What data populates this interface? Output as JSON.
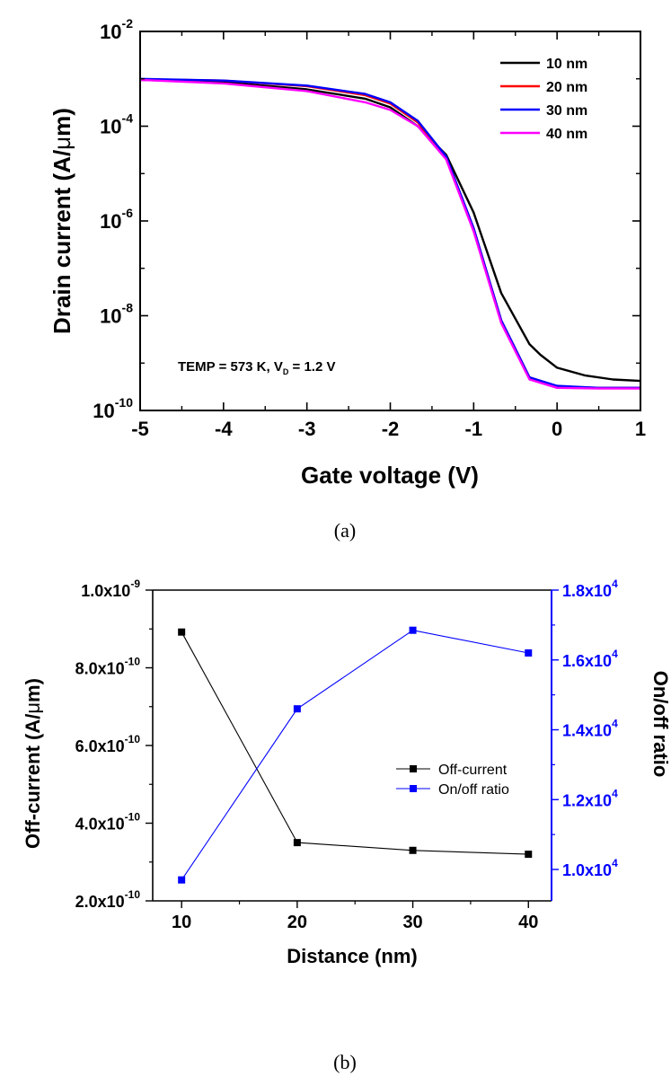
{
  "chart_data": [
    {
      "type": "line",
      "panel_caption": "(a)",
      "xlabel": "Gate voltage (V)",
      "ylabel_main": "Drain current (A/",
      "ylabel_unit_mu": "μ",
      "ylabel_tail": "m)",
      "xlim": [
        -5,
        1
      ],
      "ylim": [
        1e-10,
        0.01
      ],
      "yscale": "log",
      "x_ticks": [
        "-5",
        "-4",
        "-3",
        "-2",
        "-1",
        "0",
        "1"
      ],
      "y_tick_exponents": [
        "-2",
        "-4",
        "-6",
        "-8",
        "-10"
      ],
      "y_tick_base": "10",
      "annotation": {
        "main": "TEMP = 573 K, V",
        "sub": "D",
        "tail": " = 1.2 V"
      },
      "legend_position": "top-right",
      "series": [
        {
          "name": "10 nm",
          "color": "#000000",
          "points": [
            [
              -5,
              0.00095
            ],
            [
              -4,
              0.00085
            ],
            [
              -3,
              0.0006
            ],
            [
              -2.3,
              0.00038
            ],
            [
              -2,
              0.00025
            ],
            [
              -1.67,
              0.0001
            ],
            [
              -1.33,
              2.5e-05
            ],
            [
              -1,
              1.5e-06
            ],
            [
              -0.67,
              3e-08
            ],
            [
              -0.33,
              2.5e-09
            ],
            [
              -0.2,
              1.5e-09
            ],
            [
              0,
              8e-10
            ],
            [
              0.33,
              5.5e-10
            ],
            [
              0.67,
              4.5e-10
            ],
            [
              1,
              4.2e-10
            ]
          ]
        },
        {
          "name": "20 nm",
          "color": "#ff0000",
          "points": [
            [
              -5,
              0.00098
            ],
            [
              -4,
              0.00092
            ],
            [
              -3,
              0.0007
            ],
            [
              -2.3,
              0.00045
            ],
            [
              -2,
              0.0003
            ],
            [
              -1.67,
              0.00012
            ],
            [
              -1.33,
              2.2e-05
            ],
            [
              -1,
              7e-07
            ],
            [
              -0.67,
              8e-09
            ],
            [
              -0.33,
              5e-10
            ],
            [
              0,
              3.2e-10
            ],
            [
              0.5,
              3e-10
            ],
            [
              1,
              3e-10
            ]
          ]
        },
        {
          "name": "30 nm",
          "color": "#0000ff",
          "points": [
            [
              -5,
              0.001
            ],
            [
              -4,
              0.00092
            ],
            [
              -3,
              0.00072
            ],
            [
              -2.3,
              0.00048
            ],
            [
              -2,
              0.00032
            ],
            [
              -1.67,
              0.00013
            ],
            [
              -1.33,
              2.3e-05
            ],
            [
              -1,
              7e-07
            ],
            [
              -0.67,
              8e-09
            ],
            [
              -0.33,
              5e-10
            ],
            [
              0,
              3.3e-10
            ],
            [
              0.5,
              3e-10
            ],
            [
              1,
              3e-10
            ]
          ]
        },
        {
          "name": "40 nm",
          "color": "#ff00ff",
          "points": [
            [
              -5,
              0.00095
            ],
            [
              -4,
              0.0008
            ],
            [
              -3,
              0.00055
            ],
            [
              -2.3,
              0.00032
            ],
            [
              -2,
              0.00022
            ],
            [
              -1.67,
              0.0001
            ],
            [
              -1.33,
              2e-05
            ],
            [
              -1,
              6e-07
            ],
            [
              -0.67,
              7e-09
            ],
            [
              -0.33,
              4.5e-10
            ],
            [
              0,
              3e-10
            ],
            [
              0.5,
              2.9e-10
            ],
            [
              1,
              2.9e-10
            ]
          ]
        }
      ]
    },
    {
      "type": "line",
      "panel_caption": "(b)",
      "xlabel": "Distance (nm)",
      "ylabel_left_main": "Off-current (A/",
      "ylabel_left_mu": "μ",
      "ylabel_left_tail": "m)",
      "ylabel_right": "On/off ratio",
      "categories": [
        10,
        20,
        30,
        40
      ],
      "xlim": [
        7.5,
        42
      ],
      "x_ticks": [
        "10",
        "20",
        "30",
        "40"
      ],
      "ylim_left": [
        2e-10,
        1e-09
      ],
      "y_ticks_left": [
        {
          "mant": "2.0x10",
          "exp": "-10",
          "value": 2e-10
        },
        {
          "mant": "4.0x10",
          "exp": "-10",
          "value": 4e-10
        },
        {
          "mant": "6.0x10",
          "exp": "-10",
          "value": 6e-10
        },
        {
          "mant": "8.0x10",
          "exp": "-10",
          "value": 8e-10
        },
        {
          "mant": "1.0x10",
          "exp": "-9",
          "value": 1e-09
        }
      ],
      "ylim_right": [
        9100,
        18000
      ],
      "y_ticks_right": [
        {
          "mant": "1.0x10",
          "exp": "4",
          "value": 10000
        },
        {
          "mant": "1.2x10",
          "exp": "4",
          "value": 12000
        },
        {
          "mant": "1.4x10",
          "exp": "4",
          "value": 14000
        },
        {
          "mant": "1.6x10",
          "exp": "4",
          "value": 16000
        },
        {
          "mant": "1.8x10",
          "exp": "4",
          "value": 18000
        }
      ],
      "right_axis_color": "#0000ff",
      "legend_position": "center-right",
      "series": [
        {
          "name": "Off-current",
          "axis": "left",
          "color": "#000000",
          "values": [
            8.92e-10,
            3.5e-10,
            3.3e-10,
            3.2e-10
          ]
        },
        {
          "name": "On/off ratio",
          "axis": "right",
          "color": "#0000ff",
          "values": [
            9700,
            14600,
            16850,
            16200
          ]
        }
      ]
    }
  ]
}
